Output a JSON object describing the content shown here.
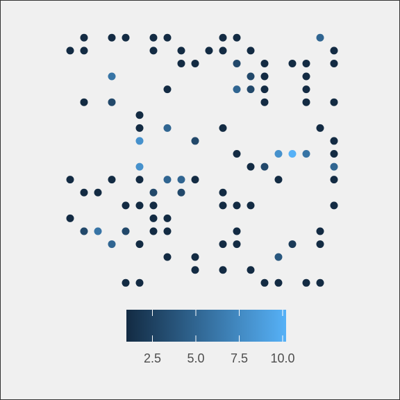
{
  "chart_data": {
    "type": "scatter",
    "x": [
      2,
      4,
      5,
      7,
      8,
      12,
      13,
      19,
      1,
      2,
      7,
      9,
      11,
      12,
      14,
      20,
      9,
      10,
      13,
      15,
      17,
      18,
      20,
      4,
      14,
      15,
      18,
      8,
      13,
      14,
      15,
      18,
      2,
      4,
      15,
      18,
      20,
      6,
      6,
      8,
      12,
      19,
      6,
      10,
      20,
      13,
      16,
      17,
      18,
      20,
      6,
      14,
      15,
      20,
      1,
      4,
      6,
      8,
      9,
      10,
      16,
      20,
      2,
      3,
      7,
      9,
      12,
      5,
      6,
      7,
      12,
      13,
      14,
      20,
      1,
      7,
      8,
      2,
      3,
      5,
      7,
      8,
      13,
      19,
      4,
      6,
      12,
      13,
      17,
      19,
      8,
      10,
      16,
      10,
      12,
      14,
      5,
      6,
      15,
      16,
      18,
      19
    ],
    "y": [
      20,
      20,
      20,
      20,
      20,
      20,
      20,
      20,
      19,
      19,
      19,
      19,
      19,
      19,
      19,
      19,
      18,
      18,
      18,
      18,
      18,
      18,
      18,
      17,
      17,
      17,
      17,
      16,
      16,
      16,
      16,
      16,
      15,
      15,
      15,
      15,
      15,
      14,
      13,
      13,
      13,
      13,
      12,
      12,
      12,
      11,
      11,
      11,
      11,
      11,
      10,
      10,
      10,
      10,
      9,
      9,
      9,
      9,
      9,
      9,
      9,
      9,
      8,
      8,
      8,
      8,
      8,
      7,
      7,
      7,
      7,
      7,
      7,
      7,
      6,
      6,
      6,
      5,
      5,
      5,
      5,
      5,
      5,
      5,
      4,
      4,
      4,
      4,
      4,
      4,
      3,
      3,
      3,
      2,
      2,
      2,
      1,
      1,
      1,
      1,
      1,
      1
    ],
    "values": [
      1,
      1,
      1,
      1,
      1,
      1,
      1,
      5,
      1,
      1,
      1,
      1,
      1,
      1,
      1,
      1,
      1,
      1,
      3,
      1,
      1,
      1,
      1,
      6,
      3,
      1,
      1,
      1,
      5,
      3,
      1,
      1,
      1,
      3,
      1,
      1,
      1,
      1,
      1,
      5,
      1,
      1,
      8,
      3,
      1,
      1,
      8,
      10.2,
      6,
      1,
      8,
      1,
      3,
      5,
      1,
      1,
      1,
      5,
      5,
      1,
      1,
      1,
      1,
      1,
      3,
      3,
      1,
      1,
      1,
      1,
      1,
      1,
      1,
      1,
      1,
      1,
      1,
      3,
      6,
      3,
      1,
      1,
      1,
      1,
      5,
      1,
      1,
      1,
      2,
      1,
      1,
      1,
      4,
      1,
      1,
      1,
      1,
      1,
      1,
      1,
      1,
      1
    ],
    "xlim": [
      0.5,
      20.5
    ],
    "ylim": [
      0.5,
      20.5
    ],
    "colorscale": [
      "#132B43",
      "#56B1F7"
    ],
    "clim": [
      1,
      10.2
    ],
    "cticks": [
      {
        "value": 2.5,
        "label": "2.5"
      },
      {
        "value": 5,
        "label": "5.0"
      },
      {
        "value": 7.5,
        "label": "7.5"
      },
      {
        "value": 10,
        "label": "10.0"
      }
    ],
    "legend": "bottom"
  }
}
